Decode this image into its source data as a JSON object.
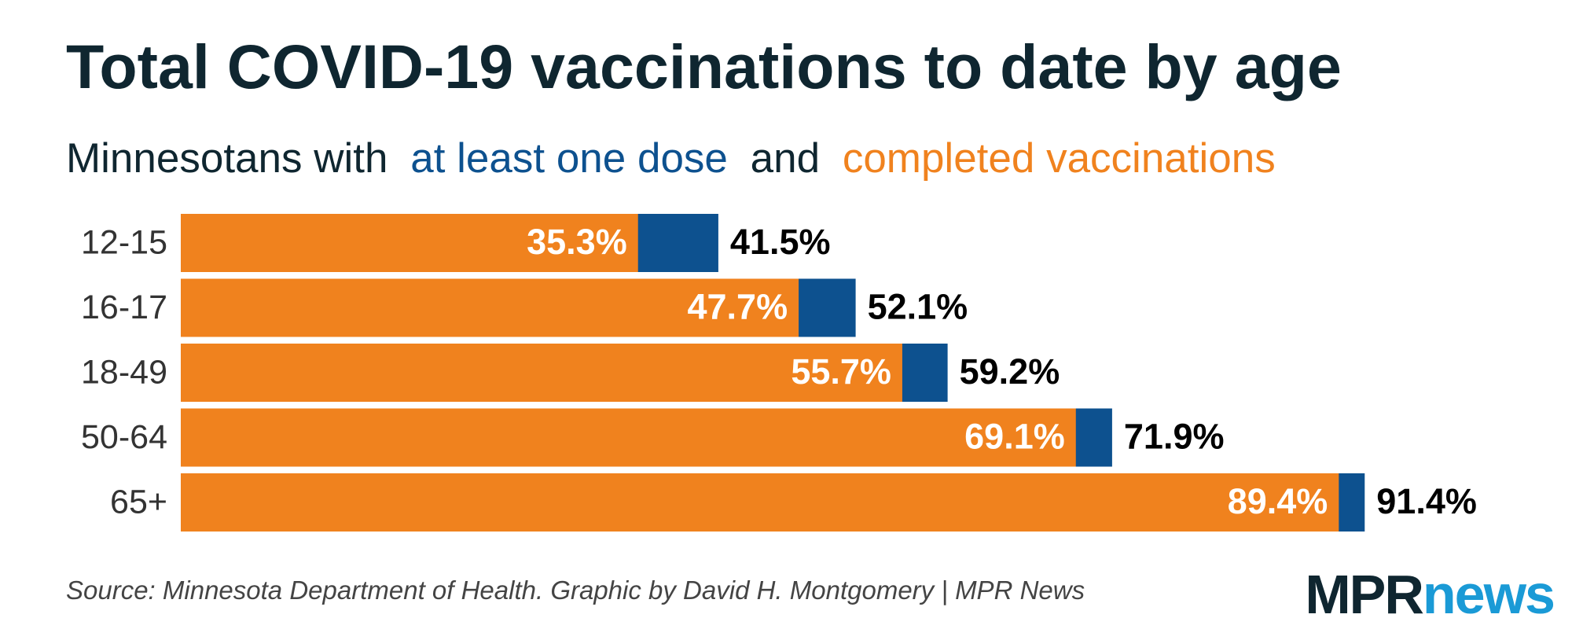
{
  "chart_data": {
    "type": "bar",
    "title": "Total COVID-19 vaccinations to date by age",
    "subtitle": {
      "lead": "Minnesotans with",
      "joiner": "and"
    },
    "categories": [
      "12-15",
      "16-17",
      "18-49",
      "50-64",
      "65+"
    ],
    "series": [
      {
        "name": "at least one dose",
        "color": "#0d518f",
        "values": [
          41.5,
          52.1,
          59.2,
          71.9,
          91.4
        ],
        "value_labels": [
          "41.5%",
          "52.1%",
          "59.2%",
          "71.9%",
          "91.4%"
        ]
      },
      {
        "name": "completed vaccinations",
        "color": "#f0821e",
        "values": [
          35.3,
          47.7,
          55.7,
          69.1,
          89.4
        ],
        "value_labels": [
          "35.3%",
          "47.7%",
          "55.7%",
          "69.1%",
          "89.4%"
        ]
      }
    ],
    "source": "Source: Minnesota Department of Health. Graphic by David H. Montgomery | MPR News",
    "logo": {
      "left": "MPR",
      "right": "news"
    }
  }
}
